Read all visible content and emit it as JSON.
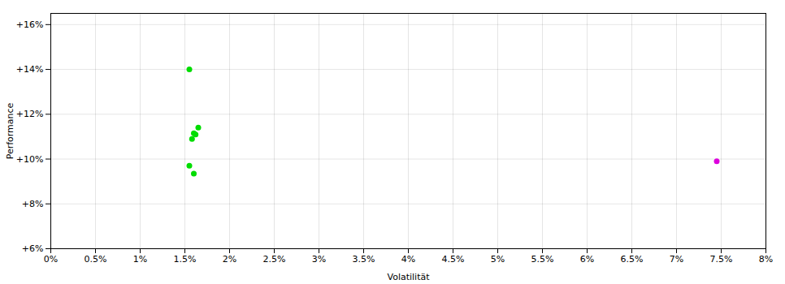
{
  "chart_data": {
    "type": "scatter",
    "xlabel": "Volatilität",
    "ylabel": "Performance",
    "xlim": [
      0.0,
      0.08
    ],
    "ylim": [
      0.06,
      0.165
    ],
    "xticks": [
      {
        "value": 0.0,
        "label": "0%"
      },
      {
        "value": 0.005,
        "label": "0.5%"
      },
      {
        "value": 0.01,
        "label": "1%"
      },
      {
        "value": 0.015,
        "label": "1.5%"
      },
      {
        "value": 0.02,
        "label": "2%"
      },
      {
        "value": 0.025,
        "label": "2.5%"
      },
      {
        "value": 0.03,
        "label": "3%"
      },
      {
        "value": 0.035,
        "label": "3.5%"
      },
      {
        "value": 0.04,
        "label": "4%"
      },
      {
        "value": 0.045,
        "label": "4.5%"
      },
      {
        "value": 0.05,
        "label": "5%"
      },
      {
        "value": 0.055,
        "label": "5.5%"
      },
      {
        "value": 0.06,
        "label": "6%"
      },
      {
        "value": 0.065,
        "label": "6.5%"
      },
      {
        "value": 0.07,
        "label": "7%"
      },
      {
        "value": 0.075,
        "label": "7.5%"
      },
      {
        "value": 0.08,
        "label": "8%"
      }
    ],
    "yticks": [
      {
        "value": 0.06,
        "label": "+6%"
      },
      {
        "value": 0.08,
        "label": "+8%"
      },
      {
        "value": 0.1,
        "label": "+10%"
      },
      {
        "value": 0.12,
        "label": "+12%"
      },
      {
        "value": 0.14,
        "label": "+14%"
      },
      {
        "value": 0.16,
        "label": "+16%"
      }
    ],
    "grid": true,
    "series": [
      {
        "color": "#00dd00",
        "x": [
          0.0155,
          0.016,
          0.0165,
          0.0158,
          0.0162,
          0.0155,
          0.016
        ],
        "values": [
          0.14,
          0.1115,
          0.114,
          0.109,
          0.111,
          0.097,
          0.0935
        ]
      },
      {
        "color": "#dd00dd",
        "x": [
          0.0745
        ],
        "values": [
          0.099
        ]
      }
    ]
  }
}
